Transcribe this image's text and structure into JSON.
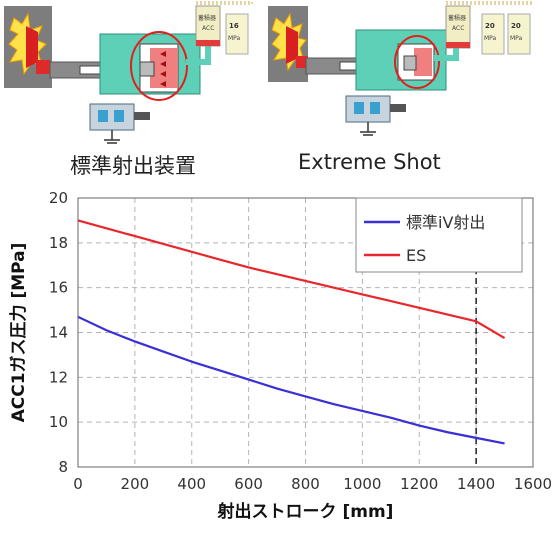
{
  "captions": {
    "standard": "標準射出装置",
    "extreme": "Extreme Shot"
  },
  "diagram_labels": {
    "acc_tank": "蓄積器\nACC",
    "left_pressure": "16\nMPa",
    "right_pressure_1": "20\nMPa",
    "right_pressure_2": "20\nMPa"
  },
  "colors": {
    "standard": "#3b2fd6",
    "es": "#e8262c",
    "cylinder_teal": "#5fd0b8",
    "highlight_ring": "#e0201c",
    "tank": "#f2eec4"
  },
  "chart_data": {
    "type": "line",
    "xlabel": "射出ストローク [mm]",
    "ylabel": "ACC1ガス圧力 [MPa]",
    "xlim": [
      0,
      1600
    ],
    "ylim": [
      8,
      20
    ],
    "xticks": [
      0,
      200,
      400,
      600,
      800,
      1000,
      1200,
      1400,
      1600
    ],
    "yticks": [
      8,
      10,
      12,
      14,
      16,
      18,
      20
    ],
    "grid": true,
    "legend_position": "top-right",
    "reference_line_x": 1400,
    "series": [
      {
        "name": "標準iV射出",
        "color": "#3b2fd6",
        "x": [
          0,
          100,
          200,
          300,
          400,
          500,
          600,
          700,
          800,
          900,
          1000,
          1100,
          1200,
          1300,
          1400,
          1500
        ],
        "y": [
          14.7,
          14.1,
          13.6,
          13.15,
          12.7,
          12.3,
          11.9,
          11.5,
          11.15,
          10.8,
          10.5,
          10.2,
          9.85,
          9.55,
          9.3,
          9.05
        ]
      },
      {
        "name": "ES",
        "color": "#e8262c",
        "x": [
          0,
          100,
          200,
          300,
          400,
          500,
          600,
          700,
          800,
          900,
          1000,
          1100,
          1200,
          1300,
          1400,
          1500
        ],
        "y": [
          19.0,
          18.65,
          18.3,
          17.95,
          17.6,
          17.25,
          16.9,
          16.6,
          16.3,
          16.0,
          15.7,
          15.4,
          15.1,
          14.8,
          14.5,
          13.75
        ]
      }
    ]
  }
}
